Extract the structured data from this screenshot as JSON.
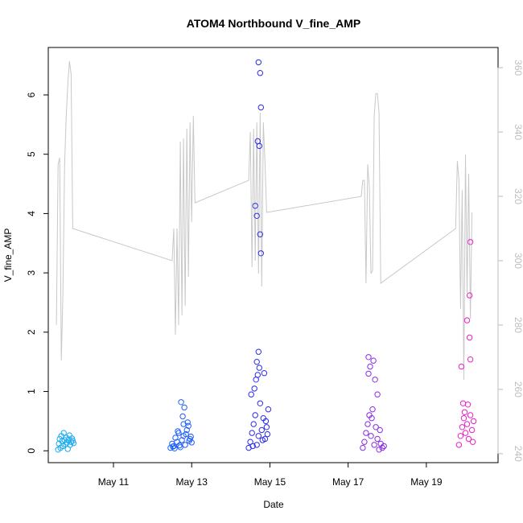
{
  "chart_data": {
    "type": "scatter",
    "title": "ATOM4 Northbound V_fine_AMP",
    "xlabel": "Date",
    "ylabel": "V_fine_AMP",
    "x_axis": {
      "type": "date",
      "range": [
        "2019-05-09T08:00",
        "2019-05-20T20:00"
      ],
      "ticks": [
        {
          "date": "2019-05-11T00:00",
          "label": "May 11"
        },
        {
          "date": "2019-05-13T00:00",
          "label": "May 13"
        },
        {
          "date": "2019-05-15T00:00",
          "label": "May 15"
        },
        {
          "date": "2019-05-17T00:00",
          "label": "May 17"
        },
        {
          "date": "2019-05-19T00:00",
          "label": "May 19"
        }
      ]
    },
    "y_axis_left": {
      "range": [
        -0.2,
        6.8
      ],
      "ticks": [
        0,
        1,
        2,
        3,
        4,
        5,
        6
      ]
    },
    "y_axis_right": {
      "range": [
        237.2,
        366.3
      ],
      "ticks": [
        240,
        260,
        280,
        300,
        320,
        340,
        360
      ],
      "color": "#bdbdbd"
    },
    "grid": false,
    "legend": "none",
    "series": [
      {
        "axis": "left",
        "marker": "open-circle",
        "color": "#1eaaf0",
        "points": [
          [
            "2019-05-09T14:00",
            0.02
          ],
          [
            "2019-05-09T14:30",
            0.12
          ],
          [
            "2019-05-09T15:00",
            0.2
          ],
          [
            "2019-05-09T15:30",
            0.05
          ],
          [
            "2019-05-09T16:00",
            0.25
          ],
          [
            "2019-05-09T16:30",
            0.16
          ],
          [
            "2019-05-09T17:00",
            0.08
          ],
          [
            "2019-05-09T17:30",
            0.3
          ],
          [
            "2019-05-09T18:00",
            0.18
          ],
          [
            "2019-05-09T18:30",
            0.11
          ],
          [
            "2019-05-09T19:00",
            0.22
          ],
          [
            "2019-05-09T19:30",
            0.14
          ],
          [
            "2019-05-09T20:00",
            0.03
          ],
          [
            "2019-05-09T20:30",
            0.19
          ],
          [
            "2019-05-09T21:00",
            0.26
          ],
          [
            "2019-05-09T21:30",
            0.1
          ],
          [
            "2019-05-09T22:00",
            0.15
          ],
          [
            "2019-05-09T22:30",
            0.21
          ],
          [
            "2019-05-09T23:00",
            0.17
          ],
          [
            "2019-05-09T23:30",
            0.13
          ]
        ]
      },
      {
        "axis": "left",
        "marker": "open-circle",
        "color": "#1e5ff5",
        "points": [
          [
            "2019-05-12T11:00",
            0.05
          ],
          [
            "2019-05-12T12:00",
            0.12
          ],
          [
            "2019-05-12T13:00",
            0.08
          ],
          [
            "2019-05-12T14:00",
            0.22
          ],
          [
            "2019-05-12T15:00",
            0.15
          ],
          [
            "2019-05-12T16:00",
            0.3
          ],
          [
            "2019-05-12T17:00",
            0.06
          ],
          [
            "2019-05-12T18:00",
            0.18
          ],
          [
            "2019-05-12T19:00",
            0.25
          ],
          [
            "2019-05-12T20:00",
            0.1
          ],
          [
            "2019-05-12T21:00",
            0.35
          ],
          [
            "2019-05-12T22:00",
            0.42
          ],
          [
            "2019-05-12T23:00",
            0.2
          ],
          [
            "2019-05-13T00:00",
            0.14
          ],
          [
            "2019-05-12T17:30",
            0.82
          ],
          [
            "2019-05-12T19:30",
            0.73
          ],
          [
            "2019-05-12T18:30",
            0.58
          ],
          [
            "2019-05-12T21:30",
            0.48
          ],
          [
            "2019-05-12T16:30",
            0.09
          ],
          [
            "2019-05-12T20:30",
            0.28
          ],
          [
            "2019-05-12T13:30",
            0.04
          ],
          [
            "2019-05-12T22:30",
            0.17
          ],
          [
            "2019-05-12T15:30",
            0.33
          ],
          [
            "2019-05-12T19:00",
            0.45
          ],
          [
            "2019-05-12T12:30",
            0.07
          ],
          [
            "2019-05-12T23:30",
            0.24
          ]
        ]
      },
      {
        "axis": "left",
        "marker": "open-circle",
        "color": "#2b2bec",
        "points": [
          [
            "2019-05-14T11:00",
            0.05
          ],
          [
            "2019-05-14T12:00",
            0.15
          ],
          [
            "2019-05-14T13:00",
            0.3
          ],
          [
            "2019-05-14T14:00",
            0.45
          ],
          [
            "2019-05-14T15:00",
            0.6
          ],
          [
            "2019-05-14T16:00",
            0.1
          ],
          [
            "2019-05-14T17:00",
            0.25
          ],
          [
            "2019-05-14T18:00",
            0.8
          ],
          [
            "2019-05-14T19:00",
            0.35
          ],
          [
            "2019-05-14T20:00",
            0.55
          ],
          [
            "2019-05-14T21:00",
            0.2
          ],
          [
            "2019-05-14T22:00",
            0.4
          ],
          [
            "2019-05-14T23:00",
            0.7
          ],
          [
            "2019-05-14T12:30",
            0.95
          ],
          [
            "2019-05-14T14:30",
            1.05
          ],
          [
            "2019-05-14T15:30",
            1.2
          ],
          [
            "2019-05-14T16:30",
            1.28
          ],
          [
            "2019-05-14T17:30",
            1.4
          ],
          [
            "2019-05-14T16:00",
            1.5
          ],
          [
            "2019-05-14T17:00",
            1.67
          ],
          [
            "2019-05-14T20:30",
            1.31
          ],
          [
            "2019-05-14T15:00",
            4.13
          ],
          [
            "2019-05-14T16:00",
            3.96
          ],
          [
            "2019-05-14T18:00",
            3.65
          ],
          [
            "2019-05-14T18:30",
            3.33
          ],
          [
            "2019-05-14T16:30",
            5.22
          ],
          [
            "2019-05-14T17:30",
            5.14
          ],
          [
            "2019-05-14T18:30",
            5.79
          ],
          [
            "2019-05-14T17:00",
            6.55
          ],
          [
            "2019-05-14T18:00",
            6.37
          ],
          [
            "2019-05-14T13:30",
            0.08
          ],
          [
            "2019-05-14T19:30",
            0.18
          ],
          [
            "2019-05-14T21:30",
            0.5
          ],
          [
            "2019-05-14T22:30",
            0.28
          ]
        ]
      },
      {
        "axis": "left",
        "marker": "open-circle",
        "color": "#8a2be2",
        "points": [
          [
            "2019-05-17T09:00",
            0.05
          ],
          [
            "2019-05-17T10:00",
            0.15
          ],
          [
            "2019-05-17T11:00",
            0.3
          ],
          [
            "2019-05-17T12:00",
            0.45
          ],
          [
            "2019-05-17T13:00",
            0.6
          ],
          [
            "2019-05-17T14:00",
            0.25
          ],
          [
            "2019-05-17T15:00",
            0.7
          ],
          [
            "2019-05-17T16:00",
            0.1
          ],
          [
            "2019-05-17T17:00",
            0.4
          ],
          [
            "2019-05-17T18:00",
            0.2
          ],
          [
            "2019-05-17T19:00",
            0.02
          ],
          [
            "2019-05-17T20:00",
            0.12
          ],
          [
            "2019-05-17T21:00",
            0.05
          ],
          [
            "2019-05-17T22:00",
            0.08
          ],
          [
            "2019-05-17T12:30",
            1.58
          ],
          [
            "2019-05-17T15:30",
            1.52
          ],
          [
            "2019-05-17T13:30",
            1.42
          ],
          [
            "2019-05-17T12:30",
            1.3
          ],
          [
            "2019-05-17T16:30",
            1.2
          ],
          [
            "2019-05-17T18:00",
            0.95
          ],
          [
            "2019-05-17T14:30",
            0.55
          ],
          [
            "2019-05-17T19:30",
            0.35
          ]
        ]
      },
      {
        "axis": "left",
        "marker": "open-circle",
        "color": "#ee1ec8",
        "points": [
          [
            "2019-05-19T20:00",
            0.1
          ],
          [
            "2019-05-19T21:00",
            0.25
          ],
          [
            "2019-05-19T22:00",
            0.4
          ],
          [
            "2019-05-19T23:00",
            0.55
          ],
          [
            "2019-05-20T00:00",
            0.3
          ],
          [
            "2019-05-20T01:00",
            0.45
          ],
          [
            "2019-05-20T02:00",
            0.2
          ],
          [
            "2019-05-20T03:00",
            0.6
          ],
          [
            "2019-05-20T04:00",
            0.35
          ],
          [
            "2019-05-20T05:00",
            0.5
          ],
          [
            "2019-05-19T22:30",
            0.8
          ],
          [
            "2019-05-20T01:30",
            0.78
          ],
          [
            "2019-05-19T21:30",
            1.42
          ],
          [
            "2019-05-20T03:00",
            1.54
          ],
          [
            "2019-05-20T02:30",
            1.91
          ],
          [
            "2019-05-20T01:00",
            2.2
          ],
          [
            "2019-05-20T02:30",
            2.62
          ],
          [
            "2019-05-20T03:00",
            3.52
          ],
          [
            "2019-05-20T04:30",
            0.15
          ],
          [
            "2019-05-19T23:30",
            0.65
          ]
        ]
      },
      {
        "axis": "right",
        "type": "line",
        "color": "#c8c8c8",
        "points": [
          [
            "2019-05-09T13:00",
            280
          ],
          [
            "2019-05-09T14:00",
            330
          ],
          [
            "2019-05-09T15:00",
            332
          ],
          [
            "2019-05-09T16:00",
            269
          ],
          [
            "2019-05-09T17:00",
            290
          ],
          [
            "2019-05-09T18:00",
            330
          ],
          [
            "2019-05-09T19:00",
            345
          ],
          [
            "2019-05-09T20:00",
            355
          ],
          [
            "2019-05-09T21:00",
            362
          ],
          [
            "2019-05-09T22:00",
            358
          ],
          [
            "2019-05-09T23:00",
            310
          ],
          [
            "2019-05-12T12:00",
            300
          ],
          [
            "2019-05-12T13:00",
            310
          ],
          [
            "2019-05-12T14:00",
            277
          ],
          [
            "2019-05-12T15:00",
            310
          ],
          [
            "2019-05-12T16:00",
            280
          ],
          [
            "2019-05-12T17:00",
            337
          ],
          [
            "2019-05-12T18:00",
            283
          ],
          [
            "2019-05-12T19:00",
            338
          ],
          [
            "2019-05-12T20:00",
            286
          ],
          [
            "2019-05-12T21:00",
            341
          ],
          [
            "2019-05-12T22:00",
            295
          ],
          [
            "2019-05-12T23:00",
            343
          ],
          [
            "2019-05-13T00:00",
            312
          ],
          [
            "2019-05-13T01:00",
            345
          ],
          [
            "2019-05-13T02:00",
            318
          ],
          [
            "2019-05-14T11:00",
            325
          ],
          [
            "2019-05-14T12:00",
            340
          ],
          [
            "2019-05-14T13:00",
            298
          ],
          [
            "2019-05-14T14:00",
            341
          ],
          [
            "2019-05-14T15:00",
            300
          ],
          [
            "2019-05-14T16:00",
            343
          ],
          [
            "2019-05-14T17:00",
            296
          ],
          [
            "2019-05-14T18:00",
            346
          ],
          [
            "2019-05-14T19:00",
            292
          ],
          [
            "2019-05-14T20:00",
            343
          ],
          [
            "2019-05-14T21:00",
            330
          ],
          [
            "2019-05-14T22:00",
            315
          ],
          [
            "2019-05-17T08:00",
            320
          ],
          [
            "2019-05-17T09:00",
            325
          ],
          [
            "2019-05-17T10:00",
            325
          ],
          [
            "2019-05-17T11:00",
            293
          ],
          [
            "2019-05-17T12:00",
            330
          ],
          [
            "2019-05-17T13:00",
            323
          ],
          [
            "2019-05-17T14:00",
            296
          ],
          [
            "2019-05-17T15:00",
            297
          ],
          [
            "2019-05-17T16:00",
            345
          ],
          [
            "2019-05-17T17:00",
            352
          ],
          [
            "2019-05-17T18:00",
            352
          ],
          [
            "2019-05-17T19:00",
            346
          ],
          [
            "2019-05-17T20:00",
            293
          ],
          [
            "2019-05-19T18:00",
            310
          ],
          [
            "2019-05-19T19:00",
            331
          ],
          [
            "2019-05-19T20:00",
            325
          ],
          [
            "2019-05-19T21:00",
            285
          ],
          [
            "2019-05-19T22:00",
            322
          ],
          [
            "2019-05-19T23:00",
            263
          ],
          [
            "2019-05-20T00:00",
            333
          ],
          [
            "2019-05-20T01:00",
            290
          ],
          [
            "2019-05-20T02:00",
            327
          ],
          [
            "2019-05-20T03:00",
            282
          ],
          [
            "2019-05-20T04:00",
            315
          ]
        ]
      }
    ]
  }
}
